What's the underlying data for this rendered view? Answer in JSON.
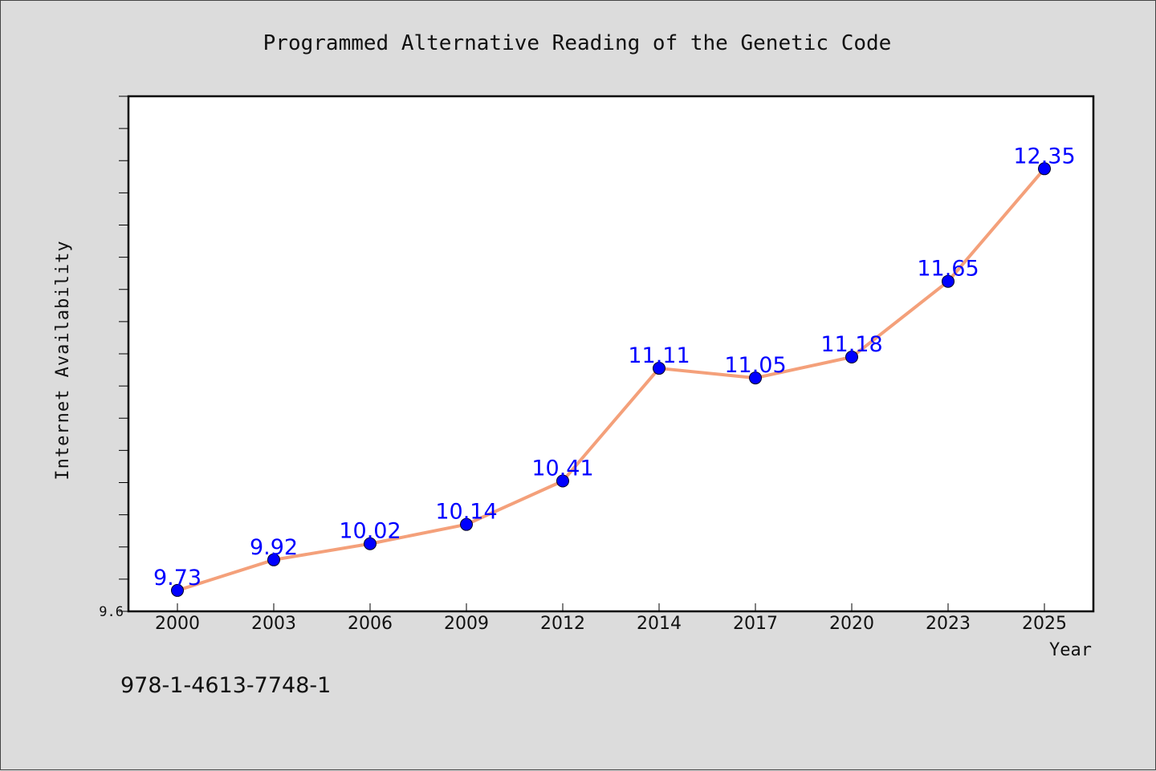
{
  "page": {
    "background": "#dcdcdc",
    "footer_text": "978-1-4613-7748-1"
  },
  "chart_data": {
    "type": "line",
    "title": "Programmed Alternative Reading of the Genetic Code",
    "xlabel": "Year",
    "ylabel": "Internet Availability",
    "categories": [
      "2000",
      "2003",
      "2006",
      "2009",
      "2012",
      "2014",
      "2017",
      "2020",
      "2023",
      "2025"
    ],
    "series": [
      {
        "values": [
          9.73,
          9.92,
          10.02,
          10.14,
          10.41,
          11.11,
          11.05,
          11.18,
          11.65,
          12.35
        ],
        "labels": [
          "9.73",
          "9.92",
          "10.02",
          "10.14",
          "10.41",
          "11.11",
          "11.05",
          "11.18",
          "11.65",
          "12.35"
        ],
        "line_color": "#f4a07a",
        "marker_color": "#0000ff"
      }
    ],
    "ylim": [
      9.6,
      12.8
    ],
    "ytick_labels": [
      "9.6"
    ],
    "minor_tick_step": 0.2,
    "grid": false,
    "legend": "none",
    "plot_background": "#ffffff"
  }
}
